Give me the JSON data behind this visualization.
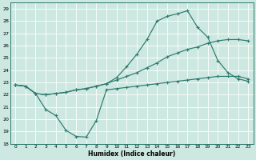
{
  "title": "",
  "xlabel": "Humidex (Indice chaleur)",
  "bg_color": "#cce8e0",
  "grid_color": "#b0d8d0",
  "line_color": "#2d7a6e",
  "xlim": [
    -0.5,
    23.5
  ],
  "ylim": [
    18,
    29.5
  ],
  "yticks": [
    18,
    19,
    20,
    21,
    22,
    23,
    24,
    25,
    26,
    27,
    28,
    29
  ],
  "xticks": [
    0,
    1,
    2,
    3,
    4,
    5,
    6,
    7,
    8,
    9,
    10,
    11,
    12,
    13,
    14,
    15,
    16,
    17,
    18,
    19,
    20,
    21,
    22,
    23
  ],
  "series1_x": [
    0,
    1,
    2,
    3,
    4,
    5,
    6,
    7,
    8,
    9,
    10,
    11,
    12,
    13,
    14,
    15,
    16,
    17,
    18,
    19,
    20,
    21,
    22,
    23
  ],
  "series1_y": [
    22.8,
    22.7,
    22.1,
    20.8,
    20.3,
    19.1,
    18.6,
    18.55,
    19.9,
    22.4,
    22.5,
    22.6,
    22.7,
    22.8,
    22.9,
    23.0,
    23.1,
    23.2,
    23.3,
    23.4,
    23.5,
    23.5,
    23.5,
    23.3
  ],
  "series2_x": [
    0,
    1,
    2,
    3,
    4,
    5,
    6,
    7,
    8,
    9,
    10,
    11,
    12,
    13,
    14,
    15,
    16,
    17,
    18,
    19,
    20,
    21,
    22,
    23
  ],
  "series2_y": [
    22.8,
    22.7,
    22.1,
    22.0,
    22.1,
    22.2,
    22.4,
    22.5,
    22.7,
    22.9,
    23.2,
    23.5,
    23.8,
    24.2,
    24.6,
    25.1,
    25.4,
    25.7,
    25.9,
    26.2,
    26.4,
    26.5,
    26.5,
    26.4
  ],
  "series3_x": [
    0,
    1,
    2,
    3,
    4,
    5,
    6,
    7,
    8,
    9,
    10,
    11,
    12,
    13,
    14,
    15,
    16,
    17,
    18,
    19,
    20,
    21,
    22,
    23
  ],
  "series3_y": [
    22.8,
    22.7,
    22.1,
    22.0,
    22.1,
    22.2,
    22.4,
    22.5,
    22.7,
    22.9,
    23.4,
    24.3,
    25.3,
    26.5,
    28.0,
    28.4,
    28.6,
    28.85,
    27.5,
    26.7,
    24.8,
    23.8,
    23.3,
    23.1
  ]
}
